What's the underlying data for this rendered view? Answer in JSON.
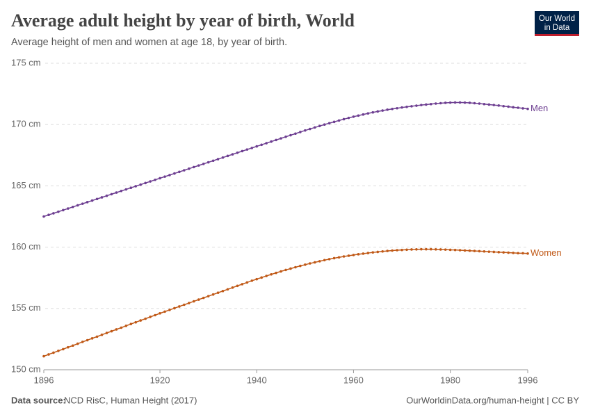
{
  "chart_data": {
    "type": "line",
    "title": "Average adult height by year of birth, World",
    "subtitle": "Average height of men and women at age 18, by year of birth.",
    "logo": [
      "Our World",
      "in Data"
    ],
    "source_label": "Data source:",
    "source": "NCD RisC, Human Height (2017)",
    "credit": "OurWorldinData.org/human-height | CC BY",
    "x": [
      1896,
      1897,
      1898,
      1899,
      1900,
      1901,
      1902,
      1903,
      1904,
      1905,
      1906,
      1907,
      1908,
      1909,
      1910,
      1911,
      1912,
      1913,
      1914,
      1915,
      1916,
      1917,
      1918,
      1919,
      1920,
      1921,
      1922,
      1923,
      1924,
      1925,
      1926,
      1927,
      1928,
      1929,
      1930,
      1931,
      1932,
      1933,
      1934,
      1935,
      1936,
      1937,
      1938,
      1939,
      1940,
      1941,
      1942,
      1943,
      1944,
      1945,
      1946,
      1947,
      1948,
      1949,
      1950,
      1951,
      1952,
      1953,
      1954,
      1955,
      1956,
      1957,
      1958,
      1959,
      1960,
      1961,
      1962,
      1963,
      1964,
      1965,
      1966,
      1967,
      1968,
      1969,
      1970,
      1971,
      1972,
      1973,
      1974,
      1975,
      1976,
      1977,
      1978,
      1979,
      1980,
      1981,
      1982,
      1983,
      1984,
      1985,
      1986,
      1987,
      1988,
      1989,
      1990,
      1991,
      1992,
      1993,
      1994,
      1995,
      1996
    ],
    "series": [
      {
        "name": "Men",
        "color": "#6d3e91",
        "values": [
          162.5,
          162.63,
          162.76,
          162.89,
          163.02,
          163.15,
          163.28,
          163.41,
          163.54,
          163.67,
          163.8,
          163.93,
          164.06,
          164.19,
          164.32,
          164.45,
          164.58,
          164.71,
          164.84,
          164.97,
          165.1,
          165.23,
          165.36,
          165.49,
          165.62,
          165.75,
          165.88,
          166.01,
          166.14,
          166.27,
          166.4,
          166.53,
          166.66,
          166.79,
          166.92,
          167.05,
          167.18,
          167.31,
          167.44,
          167.57,
          167.7,
          167.83,
          167.96,
          168.09,
          168.22,
          168.35,
          168.48,
          168.61,
          168.74,
          168.87,
          169.0,
          169.13,
          169.26,
          169.39,
          169.52,
          169.64,
          169.76,
          169.88,
          170.0,
          170.11,
          170.22,
          170.33,
          170.44,
          170.54,
          170.64,
          170.73,
          170.82,
          170.91,
          170.99,
          171.07,
          171.14,
          171.21,
          171.27,
          171.33,
          171.39,
          171.44,
          171.49,
          171.54,
          171.59,
          171.63,
          171.67,
          171.71,
          171.74,
          171.77,
          171.79,
          171.8,
          171.8,
          171.79,
          171.77,
          171.74,
          171.71,
          171.67,
          171.63,
          171.59,
          171.55,
          171.5,
          171.46,
          171.41,
          171.37,
          171.32,
          171.28
        ]
      },
      {
        "name": "Women",
        "color": "#c05917",
        "values": [
          151.1,
          151.25,
          151.39,
          151.54,
          151.68,
          151.83,
          151.97,
          152.12,
          152.27,
          152.41,
          152.56,
          152.7,
          152.85,
          153.0,
          153.14,
          153.29,
          153.43,
          153.58,
          153.73,
          153.87,
          154.02,
          154.16,
          154.31,
          154.45,
          154.6,
          154.74,
          154.88,
          155.02,
          155.16,
          155.3,
          155.44,
          155.58,
          155.72,
          155.86,
          156.0,
          156.14,
          156.28,
          156.42,
          156.56,
          156.7,
          156.84,
          156.98,
          157.12,
          157.26,
          157.39,
          157.52,
          157.65,
          157.78,
          157.9,
          158.02,
          158.14,
          158.25,
          158.36,
          158.47,
          158.57,
          158.67,
          158.76,
          158.85,
          158.94,
          159.02,
          159.1,
          159.17,
          159.24,
          159.3,
          159.36,
          159.42,
          159.47,
          159.52,
          159.57,
          159.61,
          159.65,
          159.69,
          159.72,
          159.75,
          159.77,
          159.79,
          159.81,
          159.82,
          159.83,
          159.83,
          159.83,
          159.82,
          159.81,
          159.8,
          159.78,
          159.77,
          159.75,
          159.73,
          159.71,
          159.69,
          159.67,
          159.65,
          159.63,
          159.61,
          159.59,
          159.57,
          159.55,
          159.53,
          159.51,
          159.5,
          159.48
        ]
      }
    ],
    "xlim": [
      1896,
      1996
    ],
    "xticks": [
      1896,
      1920,
      1940,
      1960,
      1980,
      1996
    ],
    "ylim": [
      150,
      175
    ],
    "yticks": [
      {
        "value": 150,
        "label": "150 cm"
      },
      {
        "value": 155,
        "label": "155 cm"
      },
      {
        "value": 160,
        "label": "160 cm"
      },
      {
        "value": 165,
        "label": "165 cm"
      },
      {
        "value": 170,
        "label": "170 cm"
      },
      {
        "value": 175,
        "label": "175 cm"
      }
    ],
    "grid": true
  }
}
